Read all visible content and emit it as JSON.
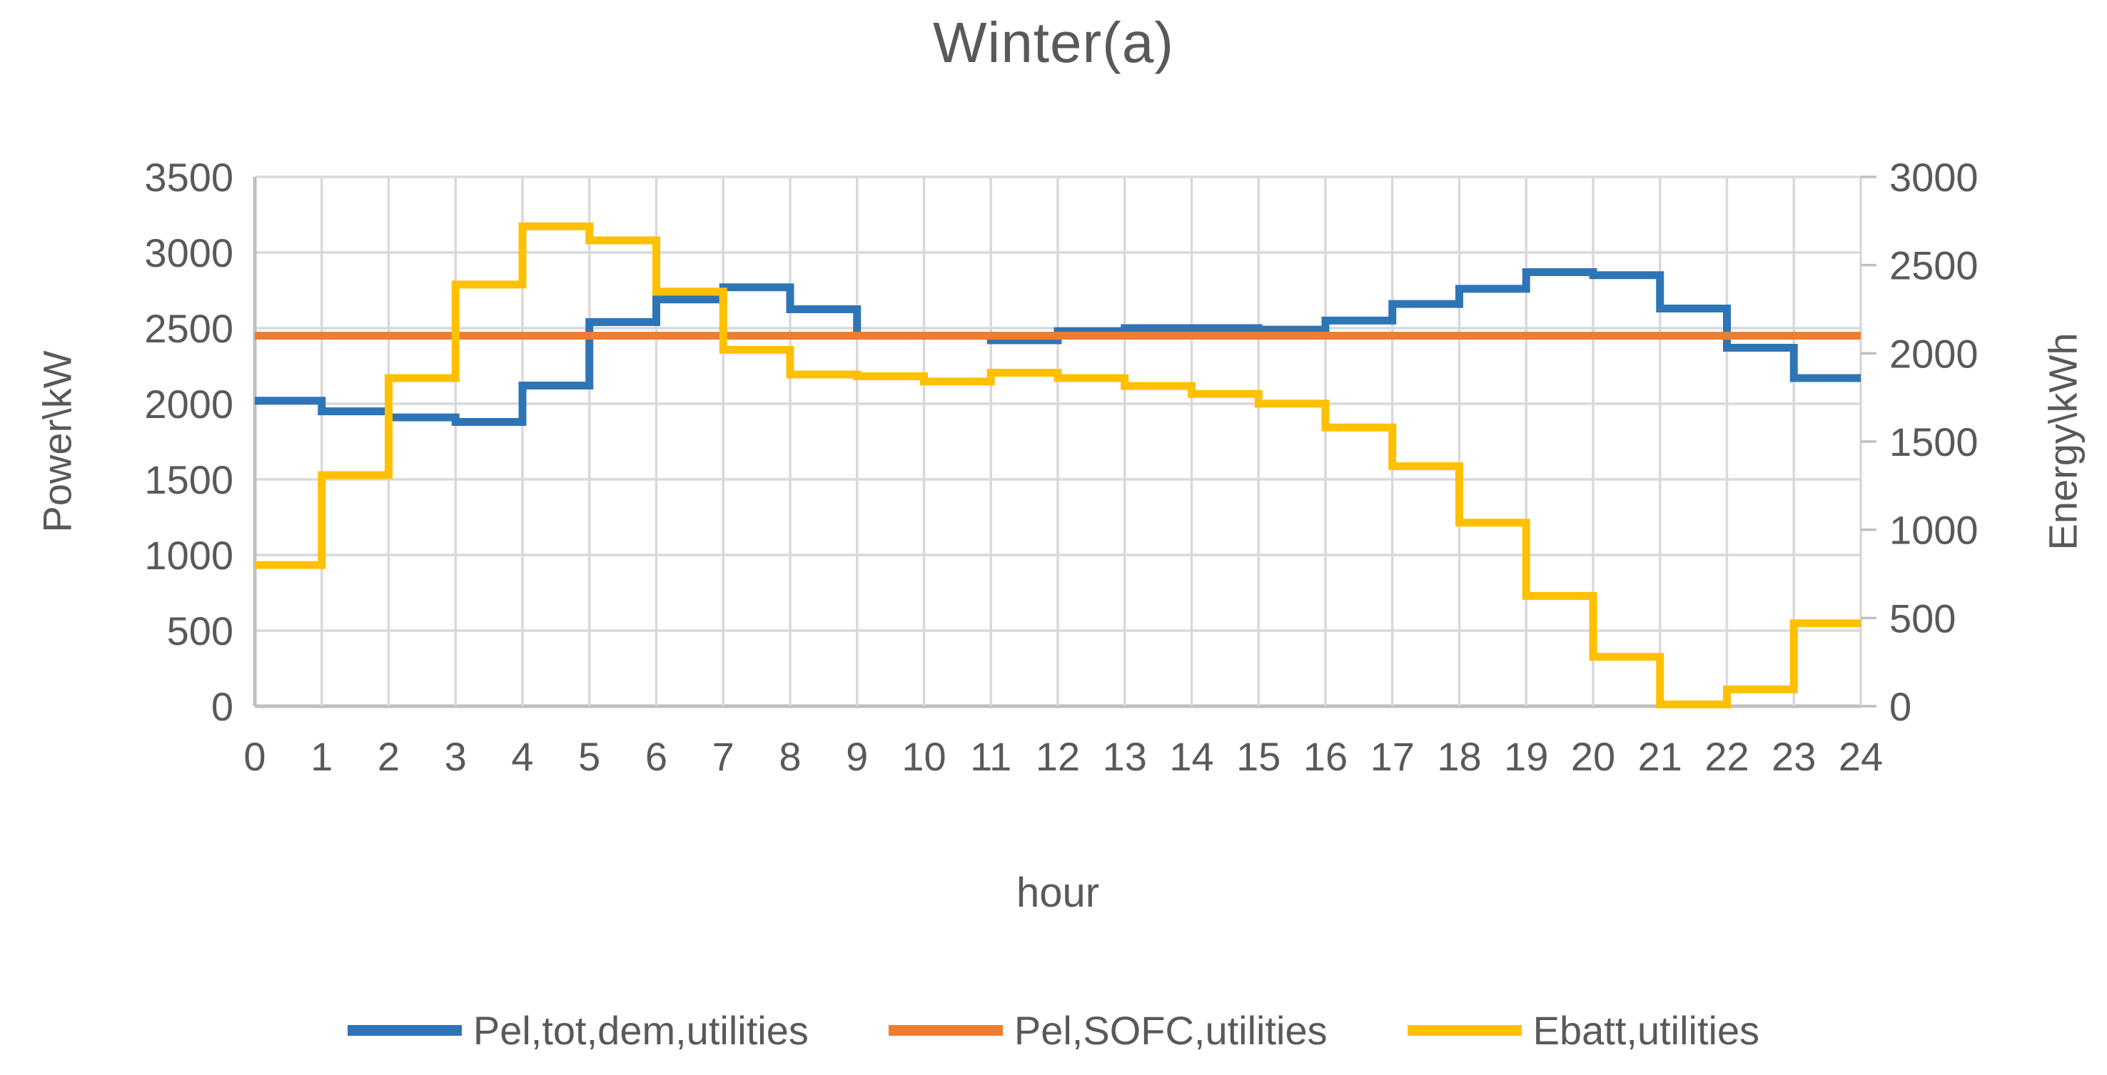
{
  "page": {
    "background": "#FFFFFF"
  },
  "chart_data": {
    "type": "line",
    "subtype": "step",
    "title": "Winter(a)",
    "xlabel": "hour",
    "ylabel_left": "Power\\kW",
    "ylabel_right": "Energy\\kWh",
    "grid": true,
    "legend_position": "bottom",
    "x_range": [
      0,
      24
    ],
    "x_ticks": [
      0,
      1,
      2,
      3,
      4,
      5,
      6,
      7,
      8,
      9,
      10,
      11,
      12,
      13,
      14,
      15,
      16,
      17,
      18,
      19,
      20,
      21,
      22,
      23,
      24
    ],
    "left_axis": {
      "label": "Power\\kW",
      "min": 0,
      "max": 3500,
      "step": 500
    },
    "right_axis": {
      "label": "Energy\\kWh",
      "min": 0,
      "max": 3000,
      "step": 500
    },
    "left_ticks": [
      3500,
      3000,
      2500,
      2000,
      1500,
      1000,
      500,
      0
    ],
    "right_ticks": [
      3000,
      2500,
      2000,
      1500,
      1000,
      500,
      0
    ],
    "colors": {
      "grid": "#D9D9D9",
      "axis": "#BFBFBF",
      "text": "#595959",
      "series_blue": "#2E75B6",
      "series_orange": "#ED7D31",
      "series_yellow": "#FFC000"
    },
    "series": [
      {
        "name": "Pel,tot,dem,utilities",
        "slug": "pel-tot-dem-utilities",
        "color": "#2E75B6",
        "axis": "left",
        "style": "step",
        "values": [
          2020,
          1950,
          1910,
          1880,
          2120,
          2540,
          2690,
          2770,
          2625,
          2450,
          2450,
          2420,
          2480,
          2500,
          2500,
          2490,
          2550,
          2660,
          2760,
          2870,
          2850,
          2630,
          2370,
          2170
        ]
      },
      {
        "name": "Pel,SOFC,utilities",
        "slug": "pel-sofc-utilities",
        "color": "#ED7D31",
        "axis": "left",
        "style": "constant",
        "value": 2450
      },
      {
        "name": "Ebatt,utilities",
        "slug": "ebatt-utilities",
        "color": "#FFC000",
        "axis": "right",
        "style": "step",
        "values": [
          800,
          1310,
          1860,
          2390,
          2720,
          2640,
          2350,
          2020,
          1880,
          1870,
          1840,
          1890,
          1860,
          1815,
          1770,
          1715,
          1580,
          1360,
          1040,
          625,
          280,
          10,
          95,
          470
        ]
      }
    ]
  }
}
